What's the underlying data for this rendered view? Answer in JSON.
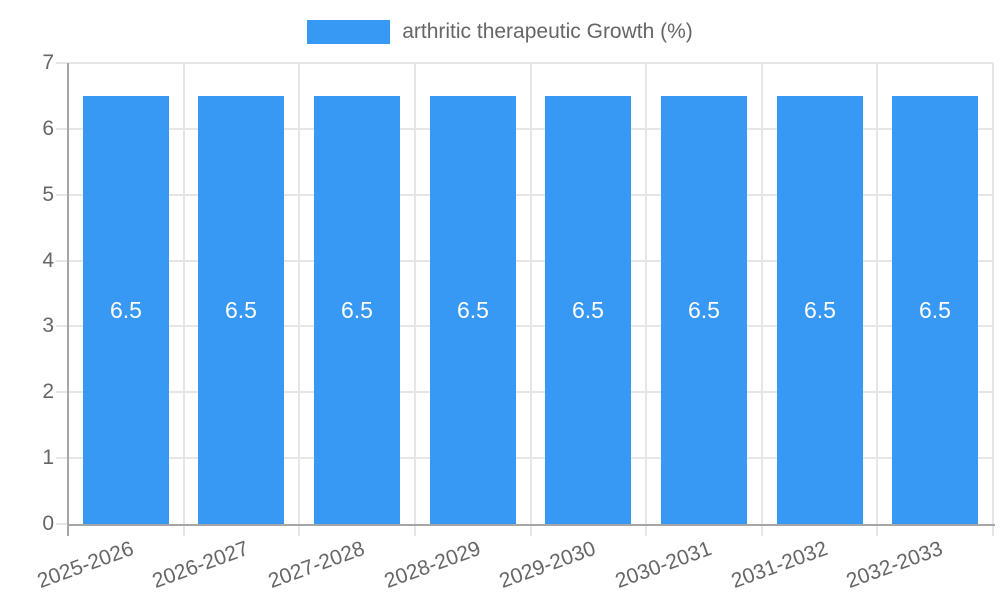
{
  "legend": {
    "label": "arthritic therapeutic Growth (%)"
  },
  "colors": {
    "bar": "#3899f4",
    "bar_label": "#ffffff",
    "grid": "#e6e6e6",
    "axis": "#a6a6a6",
    "text": "#666666",
    "background": "#ffffff"
  },
  "chart_data": {
    "type": "bar",
    "title": "",
    "categories": [
      "2025-2026",
      "2026-2027",
      "2027-2028",
      "2028-2029",
      "2029-2030",
      "2030-2031",
      "2031-2032",
      "2032-2033"
    ],
    "series": [
      {
        "name": "arthritic therapeutic Growth (%)",
        "values": [
          6.5,
          6.5,
          6.5,
          6.5,
          6.5,
          6.5,
          6.5,
          6.5
        ]
      }
    ],
    "bar_value_labels": [
      "6.5",
      "6.5",
      "6.5",
      "6.5",
      "6.5",
      "6.5",
      "6.5",
      "6.5"
    ],
    "xlabel": "",
    "ylabel": "",
    "ylim": [
      0,
      7
    ],
    "yticks": [
      0,
      1,
      2,
      3,
      4,
      5,
      6,
      7
    ],
    "grid": true,
    "legend_position": "top",
    "x_tick_label_rotation_deg": -20
  }
}
